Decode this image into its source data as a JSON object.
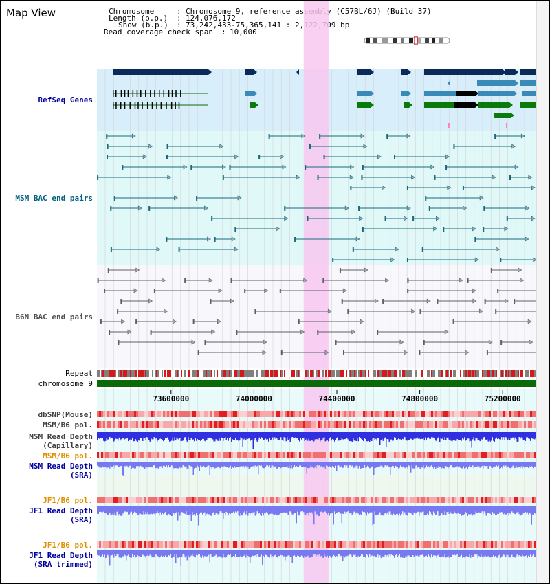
{
  "view": {
    "title": "Map View"
  },
  "info": {
    "chromosome_label": "Chromosome",
    "chromosome_value": "Chromosome 9, reference assembly (C57BL/6J) (Build 37)",
    "length_label": "Length (b.p.)",
    "length_value": "124,076,172",
    "show_label": "Show (b.p.)",
    "show_value": "73,242,433-75,365,141 : 2,122,709 bp",
    "coverage_label": "Read coverage check span",
    "coverage_value": "10,000"
  },
  "tracks": {
    "refseq": "RefSeq Genes",
    "msm_bac": "MSM BAC end pairs",
    "b6n_bac": "B6N BAC end pairs",
    "repeat": "Repeat",
    "chromosome": "chromosome 9",
    "dbsnp": "dbSNP(Mouse)",
    "msm_b6_pol_1": "MSM/B6 pol.",
    "msm_read_depth_cap_1": "MSM Read Depth",
    "msm_read_depth_cap_2": "(Capillary)",
    "msm_b6_pol_2": "MSM/B6 pol.",
    "msm_read_depth_sra_1": "MSM Read Depth",
    "msm_read_depth_sra_2": "(SRA)",
    "jf1_b6_pol_1": "JF1/B6 pol.",
    "jf1_read_depth_sra_1": "JF1 Read Depth",
    "jf1_read_depth_sra_2": "(SRA)",
    "jf1_b6_pol_2": "JF1/B6 pol.",
    "jf1_read_depth_trim_1": "JF1 Read Depth",
    "jf1_read_depth_trim_2": "(SRA trimmed)"
  },
  "axis": {
    "ticks": [
      {
        "label": "73600000",
        "pos": 73600000
      },
      {
        "label": "74000000",
        "pos": 74000000
      },
      {
        "label": "74400000",
        "pos": 74400000
      },
      {
        "label": "74800000",
        "pos": 74800000
      },
      {
        "label": "75200000",
        "pos": 75200000
      }
    ],
    "start": 73242433,
    "end": 75365141
  },
  "highlight": {
    "start": 74240000,
    "end": 74360000,
    "color": "#f8c8f0"
  },
  "colors": {
    "refseq_bg": "#d8eefa",
    "msm_bg": "#e0f8f8",
    "b6n_bg": "#f8f8fc",
    "gene_navy": "#0a2a5a",
    "gene_steel": "#3a8ab8",
    "gene_green": "#0a7a0a",
    "msm_line": "#1a6a7a",
    "b6n_line": "#606060",
    "chrom_green": "#0a6a0a",
    "pol_red": "#e04040",
    "depth_blue": "#3030e0",
    "depth_light": "#7878f0",
    "label_navy": "#0000a0",
    "label_teal": "#006080",
    "label_orange": "#e09000"
  }
}
